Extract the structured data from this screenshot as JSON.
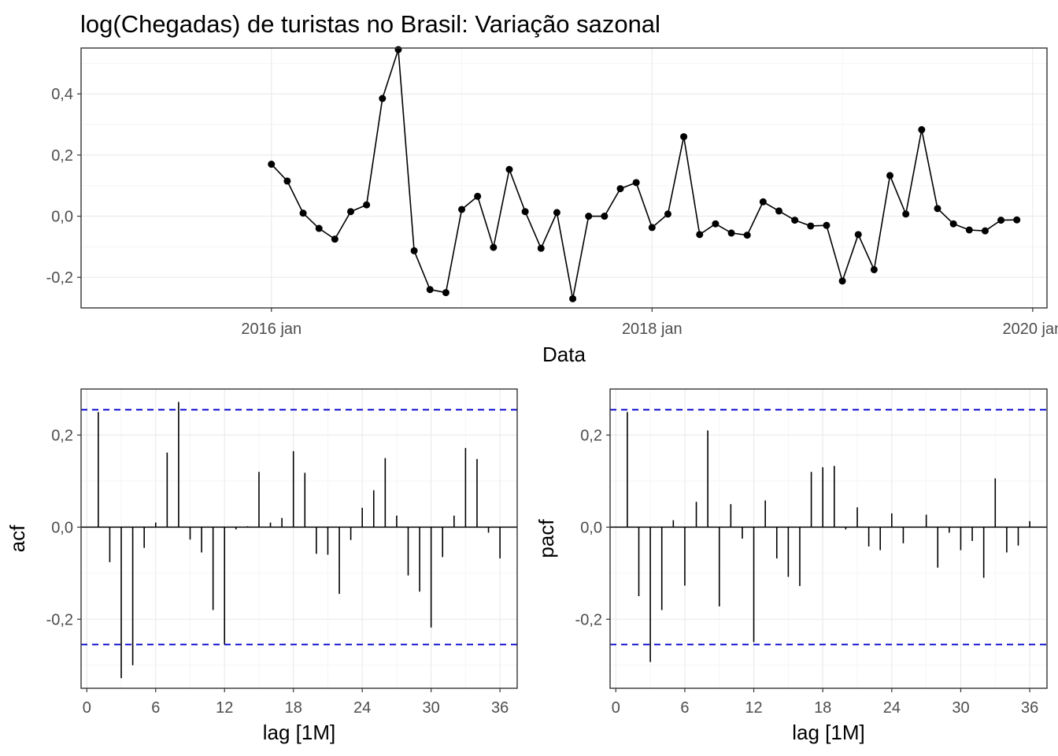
{
  "chart_data": [
    {
      "type": "line",
      "title": "log(Chegadas) de turistas no Brasil: Variação sazonal",
      "xlabel": "Data",
      "ylabel": "",
      "xlim": [
        "2015-01",
        "2020-01"
      ],
      "ylim": [
        -0.3,
        0.55
      ],
      "x_ticks": [
        {
          "date": "2016-01",
          "label": "2016 jan"
        },
        {
          "date": "2018-01",
          "label": "2018 jan"
        },
        {
          "date": "2020-01",
          "label": "2020 jan"
        }
      ],
      "y_ticks": [
        {
          "value": -0.2,
          "label": "-0,2"
        },
        {
          "value": 0.0,
          "label": "0,0"
        },
        {
          "value": 0.2,
          "label": "0,2"
        },
        {
          "value": 0.4,
          "label": "0,4"
        }
      ],
      "start": "2016-01",
      "frequency": "monthly",
      "values": [
        0.17,
        0.115,
        0.01,
        -0.04,
        -0.075,
        0.015,
        0.037,
        0.385,
        0.545,
        -0.113,
        -0.24,
        -0.25,
        0.022,
        0.065,
        -0.102,
        0.153,
        0.015,
        -0.105,
        0.012,
        -0.27,
        0.0,
        0.0,
        0.09,
        0.11,
        -0.037,
        0.007,
        0.26,
        -0.06,
        -0.025,
        -0.055,
        -0.062,
        0.047,
        0.017,
        -0.013,
        -0.032,
        -0.03,
        -0.212,
        -0.06,
        -0.175,
        0.133,
        0.007,
        0.283,
        0.025,
        -0.025,
        -0.045,
        -0.048,
        -0.013,
        -0.012
      ]
    },
    {
      "type": "bar",
      "xlabel": "lag [1M]",
      "ylabel": "acf",
      "xlim": [
        -0.5,
        37.5
      ],
      "ylim": [
        -0.35,
        0.3
      ],
      "x_ticks": [
        0,
        6,
        12,
        18,
        24,
        30,
        36
      ],
      "y_ticks": [
        {
          "value": -0.2,
          "label": "-0,2"
        },
        {
          "value": 0.0,
          "label": "0,0"
        },
        {
          "value": 0.2,
          "label": "0,2"
        }
      ],
      "confidence_bound": 0.255,
      "lags": [
        1,
        2,
        3,
        4,
        5,
        6,
        7,
        8,
        9,
        10,
        11,
        12,
        13,
        14,
        15,
        16,
        17,
        18,
        19,
        20,
        21,
        22,
        23,
        24,
        25,
        26,
        27,
        28,
        29,
        30,
        31,
        32,
        33,
        34,
        35,
        36
      ],
      "values": [
        0.25,
        -0.076,
        -0.328,
        -0.3,
        -0.045,
        0.01,
        0.162,
        0.272,
        -0.027,
        -0.055,
        -0.18,
        -0.255,
        -0.005,
        0.002,
        0.12,
        0.01,
        0.02,
        0.165,
        0.118,
        -0.058,
        -0.06,
        -0.145,
        -0.028,
        0.042,
        0.08,
        0.15,
        0.025,
        -0.105,
        -0.14,
        -0.218,
        -0.065,
        0.025,
        0.172,
        0.148,
        -0.012,
        -0.068
      ]
    },
    {
      "type": "bar",
      "xlabel": "lag [1M]",
      "ylabel": "pacf",
      "xlim": [
        -0.5,
        37.5
      ],
      "ylim": [
        -0.35,
        0.3
      ],
      "x_ticks": [
        0,
        6,
        12,
        18,
        24,
        30,
        36
      ],
      "y_ticks": [
        {
          "value": -0.2,
          "label": "-0,2"
        },
        {
          "value": 0.0,
          "label": "0,0"
        },
        {
          "value": 0.2,
          "label": "0,2"
        }
      ],
      "confidence_bound": 0.255,
      "lags": [
        1,
        2,
        3,
        4,
        5,
        6,
        7,
        8,
        9,
        10,
        11,
        12,
        13,
        14,
        15,
        16,
        17,
        18,
        19,
        20,
        21,
        22,
        23,
        24,
        25,
        26,
        27,
        28,
        29,
        30,
        31,
        32,
        33,
        34,
        35,
        36
      ],
      "values": [
        0.25,
        -0.15,
        -0.293,
        -0.18,
        0.015,
        -0.127,
        0.055,
        0.21,
        -0.172,
        0.05,
        -0.025,
        -0.25,
        0.058,
        -0.068,
        -0.108,
        -0.128,
        0.12,
        0.13,
        0.133,
        -0.005,
        0.043,
        -0.042,
        -0.05,
        0.03,
        -0.035,
        0.0,
        0.027,
        -0.088,
        -0.012,
        -0.05,
        -0.03,
        -0.11,
        0.106,
        -0.055,
        -0.04,
        0.013
      ]
    }
  ]
}
